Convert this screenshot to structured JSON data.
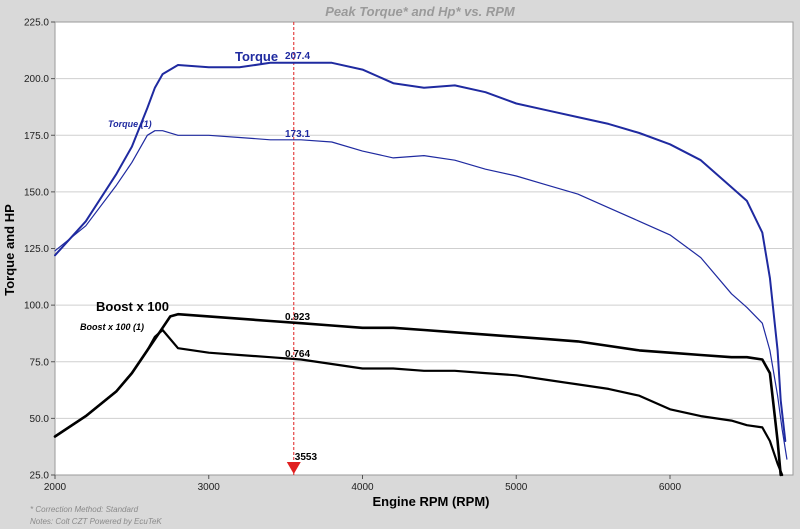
{
  "chart_data": {
    "type": "line",
    "title": "Peak Torque* and Hp* vs. RPM",
    "xlabel": "Engine RPM (RPM)",
    "ylabel": "Torque and HP",
    "xlim": [
      2000,
      6800
    ],
    "ylim": [
      25,
      225
    ],
    "xticks": [
      "2000",
      "3000",
      "4000",
      "5000",
      "6000"
    ],
    "xtick_values": [
      2000,
      3000,
      4000,
      5000,
      6000
    ],
    "yticks": [
      "25.0",
      "50.0",
      "75.0",
      "100.0",
      "125.0",
      "150.0",
      "175.0",
      "200.0",
      "225.0"
    ],
    "ytick_values": [
      25,
      50,
      75,
      100,
      125,
      150,
      175,
      200,
      225
    ],
    "grid": "horizontal",
    "cursor": {
      "rpm": 3553,
      "label": "3553",
      "color": "#e02020"
    },
    "series": [
      {
        "name": "Torque",
        "color": "#1f2aa0",
        "width": 2,
        "cursor_value": "207.4",
        "x": [
          2000,
          2200,
          2400,
          2500,
          2600,
          2650,
          2700,
          2800,
          3000,
          3200,
          3400,
          3600,
          3800,
          4000,
          4200,
          4400,
          4600,
          4800,
          5000,
          5200,
          5400,
          5600,
          5800,
          6000,
          6200,
          6400,
          6500,
          6600,
          6650,
          6700,
          6720,
          6750
        ],
        "y": [
          122,
          137,
          158,
          170,
          187,
          196,
          202,
          206,
          205,
          205,
          207,
          207,
          207,
          204,
          198,
          196,
          197,
          194,
          189,
          186,
          183,
          180,
          176,
          171,
          164,
          152,
          146,
          132,
          112,
          80,
          58,
          40
        ]
      },
      {
        "name": "Torque (1)",
        "color": "#1f2aa0",
        "width": 1.2,
        "cursor_value": "173.1",
        "x": [
          2000,
          2200,
          2400,
          2500,
          2600,
          2650,
          2700,
          2800,
          3000,
          3200,
          3400,
          3600,
          3800,
          4000,
          4200,
          4400,
          4600,
          4800,
          5000,
          5200,
          5400,
          5600,
          5800,
          6000,
          6200,
          6400,
          6500,
          6600,
          6650,
          6700,
          6730,
          6760
        ],
        "y": [
          124,
          135,
          153,
          163,
          175,
          177,
          177,
          175,
          175,
          174,
          173,
          173,
          172,
          168,
          165,
          166,
          164,
          160,
          157,
          153,
          149,
          143,
          137,
          131,
          121,
          105,
          99,
          92,
          80,
          60,
          45,
          32
        ]
      },
      {
        "name": "Boost x 100",
        "color": "#000000",
        "width": 2.6,
        "cursor_value": "0.923",
        "x": [
          2000,
          2200,
          2400,
          2500,
          2600,
          2700,
          2750,
          2800,
          3000,
          3200,
          3400,
          3600,
          3800,
          4000,
          4200,
          4400,
          4600,
          4800,
          5000,
          5200,
          5400,
          5600,
          5800,
          6000,
          6200,
          6400,
          6500,
          6600,
          6650,
          6700,
          6720
        ],
        "y": [
          42,
          51,
          62,
          70,
          80,
          90,
          95,
          96,
          95,
          94,
          93,
          92,
          91,
          90,
          90,
          89,
          88,
          87,
          86,
          85,
          84,
          82,
          80,
          79,
          78,
          77,
          77,
          76,
          70,
          40,
          25
        ]
      },
      {
        "name": "Boost x 100 (1)",
        "color": "#000000",
        "width": 2.2,
        "cursor_value": "0.764",
        "x": [
          2000,
          2200,
          2400,
          2500,
          2600,
          2650,
          2700,
          2800,
          3000,
          3200,
          3400,
          3600,
          3800,
          4000,
          4200,
          4400,
          4600,
          4800,
          5000,
          5200,
          5400,
          5600,
          5800,
          6000,
          6200,
          6400,
          6500,
          6600,
          6650,
          6700,
          6730
        ],
        "y": [
          42,
          51,
          62,
          70,
          80,
          86,
          89,
          81,
          79,
          78,
          77,
          76,
          74,
          72,
          72,
          71,
          71,
          70,
          69,
          67,
          65,
          63,
          60,
          54,
          51,
          49,
          47,
          46,
          40,
          30,
          25
        ]
      }
    ]
  },
  "notes": {
    "line1": "* Correction Method: Standard",
    "line2": "Notes: Colt CZT Powered by EcuTeK"
  }
}
